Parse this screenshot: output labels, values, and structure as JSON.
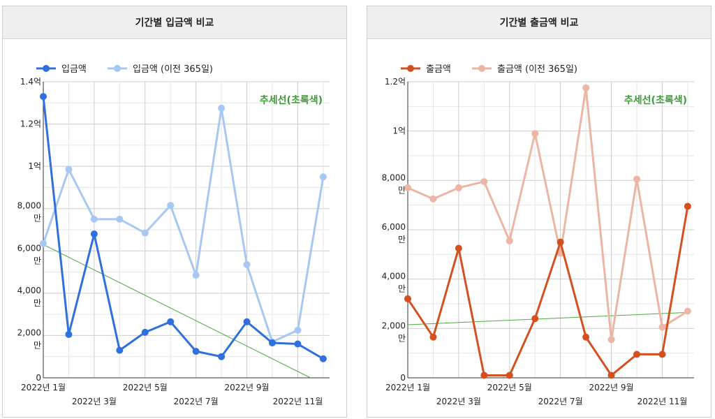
{
  "panels": [
    {
      "title": "기간별 입금액 비교",
      "annotation": "추세선(초록색)",
      "chart_data": {
        "type": "line",
        "x": [
          1,
          2,
          3,
          4,
          5,
          6,
          7,
          8,
          9,
          10,
          11,
          12
        ],
        "x_tick_labels": [
          {
            "x": 1,
            "text": "2022년 1월",
            "row": 0
          },
          {
            "x": 3,
            "text": "2022년 3월",
            "row": 1
          },
          {
            "x": 5,
            "text": "2022년 5월",
            "row": 0
          },
          {
            "x": 7,
            "text": "2022년 7월",
            "row": 1
          },
          {
            "x": 9,
            "text": "2022년 9월",
            "row": 0
          },
          {
            "x": 11,
            "text": "2022년 11월",
            "row": 1
          }
        ],
        "ylim": [
          0,
          140000000
        ],
        "y_ticks": [
          {
            "value": 0,
            "lines": [
              "0"
            ]
          },
          {
            "value": 20000000,
            "lines": [
              "2,000",
              "만"
            ]
          },
          {
            "value": 40000000,
            "lines": [
              "4,000",
              "만"
            ]
          },
          {
            "value": 60000000,
            "lines": [
              "6,000",
              "만"
            ]
          },
          {
            "value": 80000000,
            "lines": [
              "8,000",
              "만"
            ]
          },
          {
            "value": 100000000,
            "lines": [
              "1억"
            ]
          },
          {
            "value": 120000000,
            "lines": [
              "1.2억"
            ]
          },
          {
            "value": 140000000,
            "lines": [
              "1.4억"
            ]
          }
        ],
        "series": [
          {
            "name": "입금액",
            "color": "#2f6fde",
            "values": [
              133000000,
              20500000,
              68000000,
              13000000,
              21500000,
              26500000,
              12500000,
              10000000,
              26500000,
              16500000,
              16000000,
              9000000
            ]
          },
          {
            "name": "입금액 (이전 365일)",
            "color": "#a6c8f2",
            "values": [
              63500000,
              98500000,
              75000000,
              75000000,
              68500000,
              81500000,
              48500000,
              127500000,
              53500000,
              17000000,
              22500000,
              95000000
            ]
          }
        ],
        "trendline": {
          "color": "#4caa3f",
          "y_start": 63000000,
          "y_end_x": 11.5,
          "y_end": 0
        }
      }
    },
    {
      "title": "기간별 출금액 비교",
      "annotation": "추세선(초록색)",
      "chart_data": {
        "type": "line",
        "x": [
          1,
          2,
          3,
          4,
          5,
          6,
          7,
          8,
          9,
          10,
          11,
          12
        ],
        "x_tick_labels": [
          {
            "x": 1,
            "text": "2022년 1월",
            "row": 0
          },
          {
            "x": 3,
            "text": "2022년 3월",
            "row": 1
          },
          {
            "x": 5,
            "text": "2022년 5월",
            "row": 0
          },
          {
            "x": 7,
            "text": "2022년 7월",
            "row": 1
          },
          {
            "x": 9,
            "text": "2022년 9월",
            "row": 0
          },
          {
            "x": 11,
            "text": "2022년 11월",
            "row": 1
          }
        ],
        "ylim": [
          0,
          120000000
        ],
        "y_ticks": [
          {
            "value": 0,
            "lines": [
              "0"
            ]
          },
          {
            "value": 20000000,
            "lines": [
              "2,000",
              "만"
            ]
          },
          {
            "value": 40000000,
            "lines": [
              "4,000",
              "만"
            ]
          },
          {
            "value": 60000000,
            "lines": [
              "6,000",
              "만"
            ]
          },
          {
            "value": 80000000,
            "lines": [
              "8,000",
              "만"
            ]
          },
          {
            "value": 100000000,
            "lines": [
              "1억"
            ]
          },
          {
            "value": 120000000,
            "lines": [
              "1.2억"
            ]
          }
        ],
        "series": [
          {
            "name": "출금액",
            "color": "#d4501f",
            "values": [
              32000000,
              16500000,
              52500000,
              1000000,
              1000000,
              24000000,
              55000000,
              16500000,
              1000000,
              9500000,
              9500000,
              69500000
            ]
          },
          {
            "name": "출금액 (이전 365일)",
            "color": "#ecb6a4",
            "values": [
              77000000,
              72500000,
              77000000,
              79500000,
              55500000,
              99000000,
              50500000,
              117500000,
              15500000,
              80500000,
              20500000,
              27000000
            ]
          }
        ],
        "trendline": {
          "color": "#4caa3f",
          "y_start": 21500000,
          "y_end_x": 12,
          "y_end": 26500000
        }
      }
    }
  ]
}
